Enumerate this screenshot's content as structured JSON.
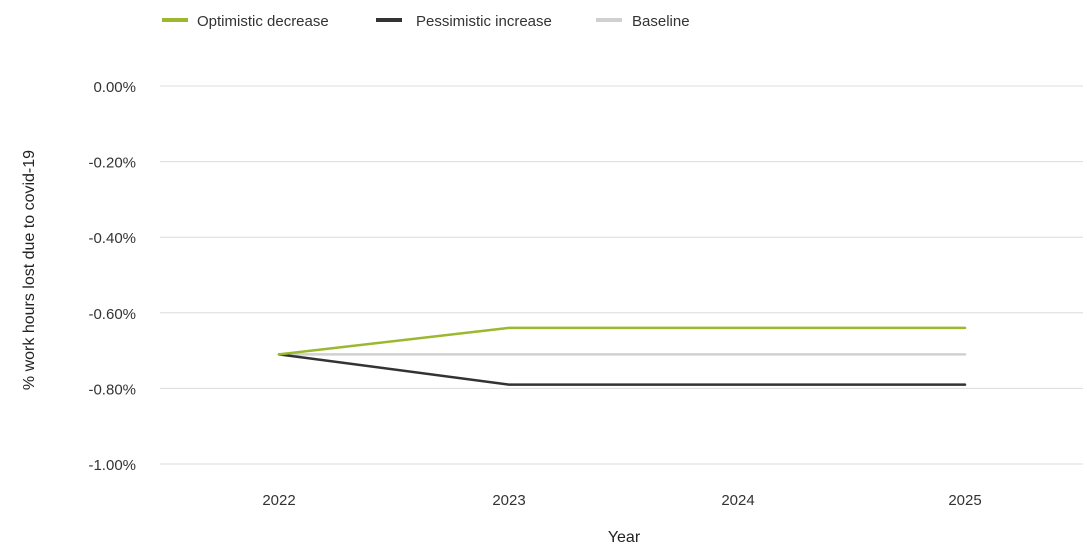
{
  "chart_data": {
    "type": "line",
    "title": "",
    "xlabel": "Year",
    "ylabel": "% work hours lost due to covid-19",
    "categories": [
      "2022",
      "2023",
      "2024",
      "2025"
    ],
    "ylim": [
      -1.0,
      0.0
    ],
    "yticks": [
      0.0,
      -0.2,
      -0.4,
      -0.6,
      -0.8,
      -1.0
    ],
    "ytick_labels": [
      "0.00%",
      "-0.20%",
      "-0.40%",
      "-0.60%",
      "-0.80%",
      "-1.00%"
    ],
    "grid": true,
    "legend_position": "top-left",
    "series": [
      {
        "name": "Optimistic decrease",
        "values": [
          -0.71,
          -0.64,
          -0.64,
          -0.64
        ],
        "color": "#9bb82e"
      },
      {
        "name": "Pessimistic increase",
        "values": [
          -0.71,
          -0.79,
          -0.79,
          -0.79
        ],
        "color": "#333333"
      },
      {
        "name": "Baseline",
        "values": [
          -0.71,
          -0.71,
          -0.71,
          -0.71
        ],
        "color": "#d0d0d0"
      }
    ]
  }
}
